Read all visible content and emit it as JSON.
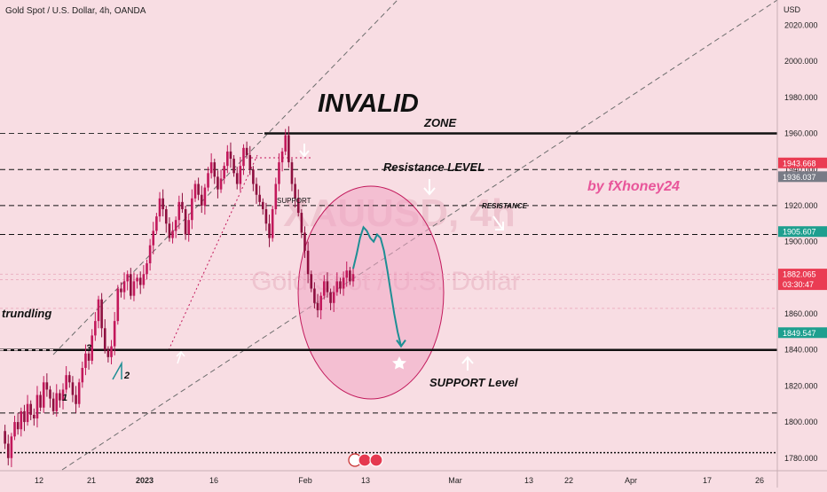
{
  "header": {
    "title": "Gold Spot / U.S. Dollar, 4h, OANDA"
  },
  "axis": {
    "currency_label": "USD"
  },
  "watermark": {
    "symbol": "XAUUSD, 4h",
    "name": "Gold Spot / U.S. Dollar"
  },
  "colors": {
    "background": "#f8dde3",
    "candle_up": "#c2185b",
    "candle_down": "#8e0f3f",
    "zone_fill": "#f0a6c4",
    "projection": "#1e8e94",
    "tag_red": "#ea3c53",
    "tag_grey": "#787b86",
    "tag_teal": "#1e9f8f",
    "author": "#e8559a"
  },
  "annotations": {
    "invalid": "INVALID",
    "zone": "ZONE",
    "resistance_level": "Resistance LEVEL",
    "resistance_small": "RESISTANCE",
    "support_level": "SUPPORT Level",
    "trendline": "trundling",
    "author": "by fXhoney24",
    "support_small": "SUPPORT",
    "wave1": "1",
    "wave2": "2",
    "wave3": "3"
  },
  "chart_data": {
    "type": "candlestick",
    "symbol": "Gold Spot / U.S. Dollar",
    "interval": "4h",
    "ylim": [
      1773,
      2034
    ],
    "y_ticks": [
      "2020.000",
      "2000.000",
      "1980.000",
      "1960.000",
      "1940.000",
      "1920.000",
      "1900.000",
      "1880.000",
      "1860.000",
      "1840.000",
      "1820.000",
      "1800.000",
      "1780.000"
    ],
    "x_ticks": [
      "12",
      "21",
      "2023",
      "16",
      "Feb",
      "13",
      "Mar",
      "13",
      "22",
      "Apr",
      "17",
      "26"
    ],
    "price_tags": [
      {
        "value": "1943.668",
        "style": "red"
      },
      {
        "value": "1936.037",
        "style": "grey"
      },
      {
        "value": "1905.607",
        "style": "teal"
      },
      {
        "value": "1882.065",
        "sub": "03:30:47",
        "style": "red"
      },
      {
        "value": "1849.547",
        "style": "teal"
      }
    ],
    "horizontal_levels": [
      {
        "price": 1960,
        "style": "solid"
      },
      {
        "price": 1940,
        "style": "dashed"
      },
      {
        "price": 1920,
        "style": "dashed"
      },
      {
        "price": 1904,
        "style": "dashed"
      },
      {
        "price": 1840,
        "style": "solid"
      },
      {
        "price": 1805,
        "style": "dashed"
      },
      {
        "price": 1783,
        "style": "dotted"
      }
    ],
    "price_path": [
      1795,
      1788,
      1780,
      1792,
      1800,
      1796,
      1806,
      1800,
      1810,
      1804,
      1802,
      1815,
      1808,
      1822,
      1818,
      1813,
      1806,
      1816,
      1812,
      1818,
      1826,
      1822,
      1815,
      1810,
      1822,
      1830,
      1838,
      1834,
      1848,
      1856,
      1868,
      1852,
      1840,
      1836,
      1842,
      1856,
      1874,
      1872,
      1878,
      1882,
      1870,
      1878,
      1880,
      1876,
      1882,
      1888,
      1898,
      1906,
      1914,
      1924,
      1918,
      1910,
      1902,
      1906,
      1912,
      1922,
      1918,
      1904,
      1912,
      1924,
      1932,
      1926,
      1920,
      1930,
      1938,
      1944,
      1936,
      1929,
      1935,
      1942,
      1950,
      1946,
      1938,
      1932,
      1942,
      1952,
      1948,
      1940,
      1932,
      1926,
      1922,
      1918,
      1910,
      1902,
      1918,
      1932,
      1944,
      1950,
      1959,
      1944,
      1932,
      1924,
      1916,
      1905,
      1895,
      1882,
      1874,
      1866,
      1862,
      1870,
      1878,
      1872,
      1866,
      1872,
      1878,
      1874,
      1880,
      1884,
      1878,
      1882
    ],
    "projection": [
      1885,
      1893,
      1902,
      1908,
      1906,
      1902,
      1900,
      1904,
      1902,
      1895,
      1884,
      1872,
      1860,
      1850,
      1842
    ]
  }
}
